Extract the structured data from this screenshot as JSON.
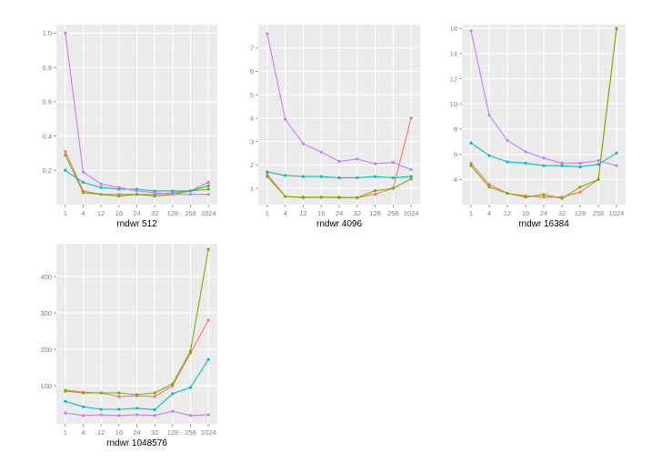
{
  "chart_data": [
    {
      "type": "line",
      "title": "",
      "xlabel": "rndwr 512",
      "ylabel": "",
      "categories": [
        "1",
        "4",
        "12",
        "16",
        "24",
        "32",
        "128",
        "256",
        "1024"
      ],
      "ylim": [
        0.0,
        1.05
      ],
      "yticks": [
        0.2,
        0.4,
        0.6,
        0.8,
        1.0
      ],
      "ytick_labels": [
        "0.2",
        "0.4",
        "0.6",
        "0.8",
        "1.0"
      ],
      "grid": true,
      "series": [
        {
          "color": "#F8766D",
          "values": [
            0.31,
            0.08,
            0.06,
            0.06,
            0.06,
            0.06,
            0.07,
            0.08,
            0.13
          ]
        },
        {
          "color": "#7CAE00",
          "values": [
            0.29,
            0.07,
            0.06,
            0.05,
            0.06,
            0.05,
            0.06,
            0.08,
            0.09
          ]
        },
        {
          "color": "#00BFC4",
          "values": [
            0.2,
            0.13,
            0.1,
            0.09,
            0.09,
            0.08,
            0.08,
            0.08,
            0.11
          ]
        },
        {
          "color": "#C77CFF",
          "values": [
            1.0,
            0.19,
            0.12,
            0.1,
            0.08,
            0.07,
            0.06,
            0.06,
            0.06
          ]
        }
      ]
    },
    {
      "type": "line",
      "title": "",
      "xlabel": "rndwr 4096",
      "ylabel": "",
      "categories": [
        "1",
        "4",
        "12",
        "16",
        "24",
        "32",
        "128",
        "256",
        "1024"
      ],
      "ylim": [
        0.3,
        8.0
      ],
      "yticks": [
        1,
        2,
        3,
        4,
        5,
        6,
        7
      ],
      "ytick_labels": [
        "1",
        "2",
        "3",
        "4",
        "5",
        "6",
        "7"
      ],
      "grid": true,
      "series": [
        {
          "color": "#F8766D",
          "values": [
            1.6,
            0.65,
            0.6,
            0.62,
            0.6,
            0.6,
            0.75,
            1.0,
            4.0
          ]
        },
        {
          "color": "#7CAE00",
          "values": [
            1.5,
            0.65,
            0.62,
            0.62,
            0.62,
            0.6,
            0.9,
            1.0,
            1.4
          ]
        },
        {
          "color": "#00BFC4",
          "values": [
            1.7,
            1.55,
            1.5,
            1.5,
            1.45,
            1.45,
            1.5,
            1.45,
            1.5
          ]
        },
        {
          "color": "#C77CFF",
          "values": [
            7.6,
            3.95,
            2.9,
            2.55,
            2.15,
            2.25,
            2.05,
            2.1,
            1.8
          ]
        }
      ]
    },
    {
      "type": "line",
      "title": "",
      "xlabel": "rndwr 16384",
      "ylabel": "",
      "categories": [
        "1",
        "4",
        "12",
        "16",
        "24",
        "32",
        "128",
        "256",
        "1024"
      ],
      "ylim": [
        2.0,
        16.3
      ],
      "yticks": [
        4,
        6,
        8,
        10,
        12,
        14,
        16
      ],
      "ytick_labels": [
        "4",
        "6",
        "8",
        "10",
        "12",
        "14",
        "16"
      ],
      "grid": true,
      "series": [
        {
          "color": "#F8766D",
          "values": [
            5.3,
            3.6,
            2.9,
            2.7,
            2.6,
            2.6,
            3.0,
            4.0,
            16.0
          ]
        },
        {
          "color": "#7CAE00",
          "values": [
            5.1,
            3.4,
            2.9,
            2.6,
            2.8,
            2.5,
            3.4,
            4.0,
            16.0
          ]
        },
        {
          "color": "#00BFC4",
          "values": [
            6.9,
            5.9,
            5.4,
            5.3,
            5.1,
            5.1,
            5.0,
            5.2,
            6.1
          ]
        },
        {
          "color": "#C77CFF",
          "values": [
            15.8,
            9.1,
            7.1,
            6.2,
            5.7,
            5.3,
            5.3,
            5.5,
            5.1
          ]
        }
      ]
    },
    {
      "type": "line",
      "title": "",
      "xlabel": "rndwr 1048576",
      "ylabel": "",
      "categories": [
        "1",
        "4",
        "12",
        "16",
        "24",
        "32",
        "128",
        "256",
        "1024"
      ],
      "ylim": [
        -5,
        490
      ],
      "yticks": [
        100,
        200,
        300,
        400
      ],
      "ytick_labels": [
        "100",
        "200",
        "300",
        "400"
      ],
      "grid": true,
      "series": [
        {
          "color": "#F8766D",
          "values": [
            88,
            82,
            80,
            70,
            72,
            70,
            100,
            190,
            280
          ]
        },
        {
          "color": "#7CAE00",
          "values": [
            85,
            80,
            80,
            80,
            75,
            80,
            105,
            195,
            475
          ]
        },
        {
          "color": "#00BFC4",
          "values": [
            57,
            42,
            35,
            35,
            38,
            34,
            78,
            95,
            172
          ]
        },
        {
          "color": "#C77CFF",
          "values": [
            25,
            18,
            20,
            18,
            20,
            18,
            30,
            18,
            20
          ]
        }
      ]
    }
  ]
}
